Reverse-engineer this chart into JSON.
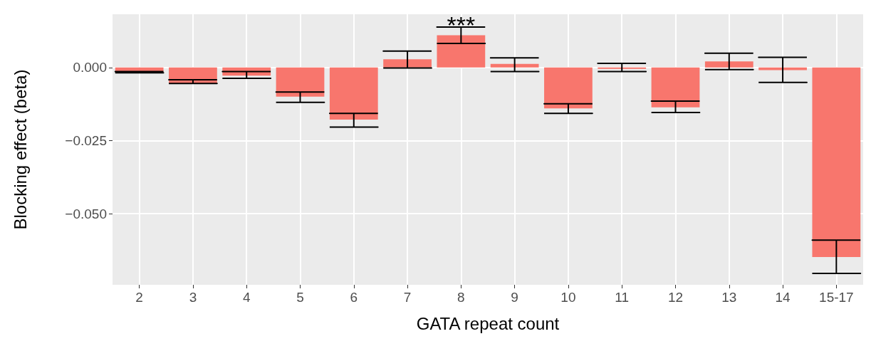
{
  "chart_data": {
    "type": "bar",
    "xlabel": "GATA repeat count",
    "ylabel": "Blocking effect (beta)",
    "categories": [
      "2",
      "3",
      "4",
      "5",
      "6",
      "7",
      "8",
      "9",
      "10",
      "11",
      "12",
      "13",
      "14",
      "15-17"
    ],
    "values": [
      -0.0015,
      -0.0054,
      -0.0028,
      -0.01,
      -0.0178,
      0.0028,
      0.011,
      0.0012,
      -0.014,
      -0.0005,
      -0.0136,
      0.0021,
      -0.0009,
      -0.0648
    ],
    "errors": [
      [
        -0.0018,
        -0.0014
      ],
      [
        -0.0055,
        -0.0042
      ],
      [
        -0.0037,
        -0.0014
      ],
      [
        -0.0119,
        -0.0084
      ],
      [
        -0.0204,
        -0.0157
      ],
      [
        -0.0002,
        0.0056
      ],
      [
        0.0082,
        0.0138
      ],
      [
        -0.0014,
        0.0033
      ],
      [
        -0.0157,
        -0.0124
      ],
      [
        -0.0014,
        0.0014
      ],
      [
        -0.0154,
        -0.0115
      ],
      [
        -0.0007,
        0.0049
      ],
      [
        -0.0051,
        0.0035
      ],
      [
        -0.0704,
        -0.059
      ]
    ],
    "color": "#f8766d",
    "ylim": [
      -0.0743,
      0.0182
    ],
    "yticks": [
      {
        "value": -0.05,
        "label": "−0.050"
      },
      {
        "value": -0.025,
        "label": "−0.025"
      },
      {
        "value": 0,
        "label": "0.000"
      }
    ],
    "grid": true,
    "annotations": [
      {
        "text": "***",
        "x": "8",
        "y": 0.0138
      }
    ]
  }
}
